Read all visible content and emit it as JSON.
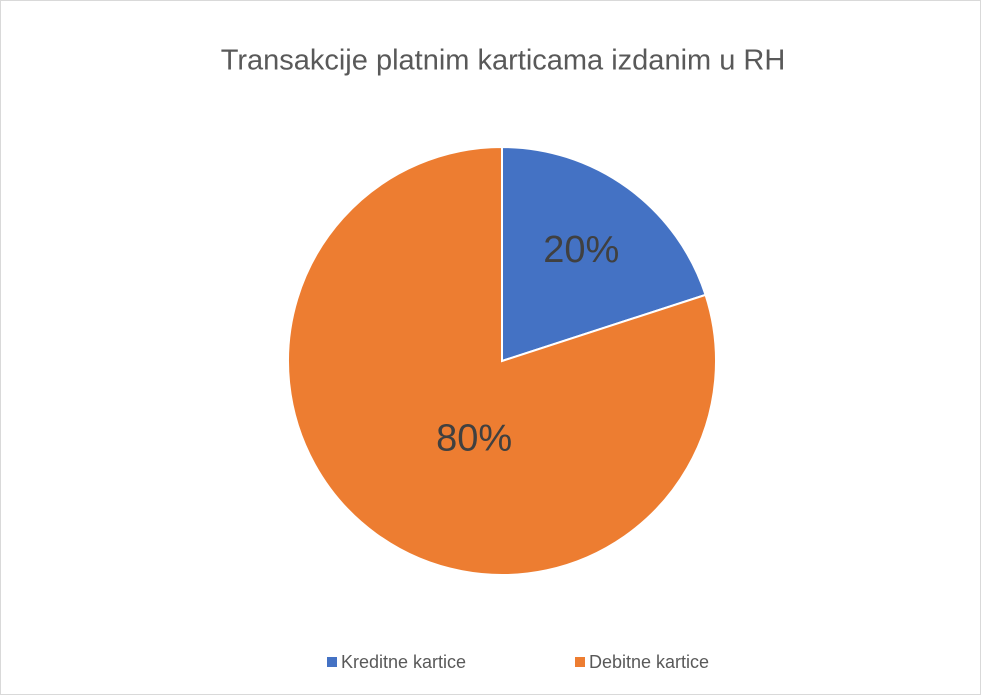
{
  "chart_data": {
    "type": "pie",
    "title": "Transakcije platnim karticama izdanim u RH",
    "categories": [
      "Kreditne kartice",
      "Debitne kartice"
    ],
    "values": [
      20,
      80
    ],
    "value_labels": [
      "20%",
      "80%"
    ],
    "colors": [
      "#4472c4",
      "#ed7d31"
    ],
    "legend": "bottom"
  }
}
